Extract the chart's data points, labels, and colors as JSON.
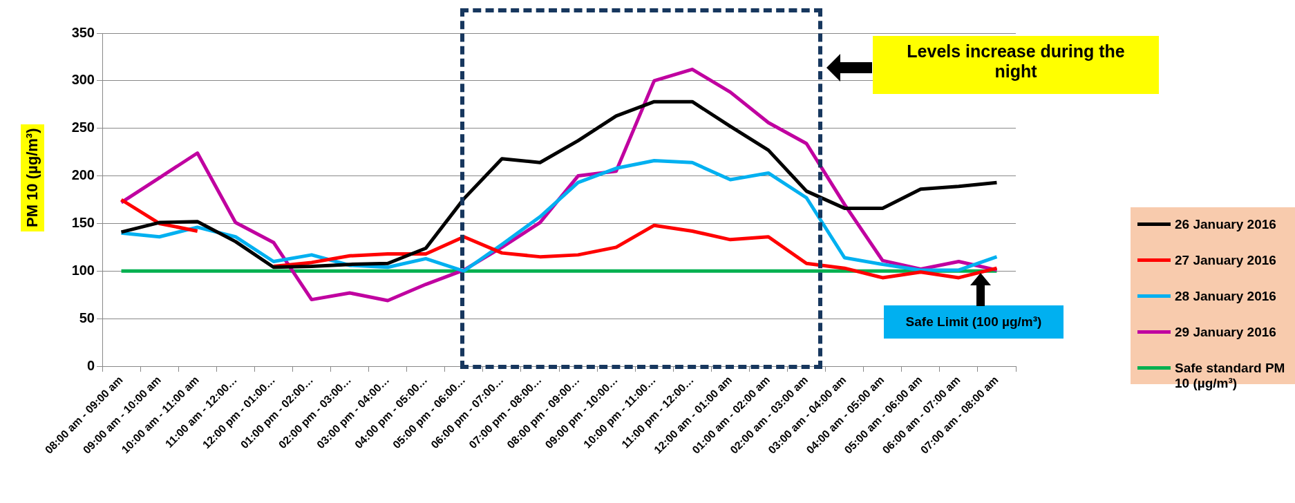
{
  "chart_data": {
    "type": "line",
    "ylabel": "PM 10 (µg/m³)",
    "categories": [
      "08:00 am - 09:00 am",
      "09:00 am - 10:00 am",
      "10:00 am - 11:00 am",
      "11:00 am - 12:00…",
      "12:00 pm - 01:00…",
      "01:00 pm - 02:00…",
      "02:00 pm - 03:00…",
      "03:00 pm - 04:00…",
      "04:00 pm - 05:00…",
      "05:00 pm - 06:00…",
      "06:00 pm - 07:00…",
      "07:00 pm - 08:00…",
      "08:00 pm - 09:00…",
      "09:00 pm - 10:00…",
      "10:00 pm - 11:00…",
      "11:00 pm - 12:00…",
      "12:00 am - 01:00 am",
      "01:00 am - 02:00 am",
      "02:00 am - 03:00 am",
      "03:00 am - 04:00 am",
      "04:00 am - 05:00 am",
      "05:00 am - 06:00 am",
      "06:00 am - 07:00 am",
      "07:00 am - 08:00 am"
    ],
    "series": [
      {
        "name": "26 January 2016",
        "color": "#000000",
        "values": [
          141,
          151,
          152,
          131,
          104,
          105,
          107,
          108,
          124,
          176,
          218,
          214,
          237,
          263,
          278,
          278,
          252,
          227,
          184,
          166,
          166,
          186,
          189,
          193
        ]
      },
      {
        "name": "27 January 2016",
        "color": "#ff0000",
        "values": [
          175,
          150,
          142,
          null,
          105,
          109,
          116,
          118,
          118,
          136,
          119,
          115,
          117,
          125,
          148,
          142,
          133,
          136,
          108,
          103,
          93,
          99,
          93,
          103
        ]
      },
      {
        "name": "28 January 2016",
        "color": "#00b0f0",
        "values": [
          140,
          136,
          146,
          136,
          110,
          117,
          106,
          104,
          113,
          100,
          128,
          157,
          193,
          208,
          216,
          214,
          196,
          203,
          177,
          114,
          107,
          101,
          101,
          115
        ]
      },
      {
        "name": "29 January 2016",
        "color": "#c000a0",
        "values": [
          172,
          198,
          224,
          151,
          130,
          70,
          77,
          69,
          86,
          101,
          125,
          151,
          200,
          205,
          300,
          312,
          288,
          256,
          234,
          170,
          111,
          102,
          110,
          101
        ]
      },
      {
        "name": "Safe standard PM 10 (µg/m³)",
        "color": "#00b050",
        "values": [
          100,
          100,
          100,
          100,
          100,
          100,
          100,
          100,
          100,
          100,
          100,
          100,
          100,
          100,
          100,
          100,
          100,
          100,
          100,
          100,
          100,
          100,
          100,
          100
        ]
      }
    ],
    "ylim": [
      0,
      350
    ],
    "yticks": [
      0,
      50,
      100,
      150,
      200,
      250,
      300,
      350
    ],
    "grid": "y",
    "legend": "right",
    "marker": "none",
    "line_style": "solid",
    "annotations": [
      "Levels increase during the night",
      "Safe Limit (100 µg/m³)"
    ]
  }
}
